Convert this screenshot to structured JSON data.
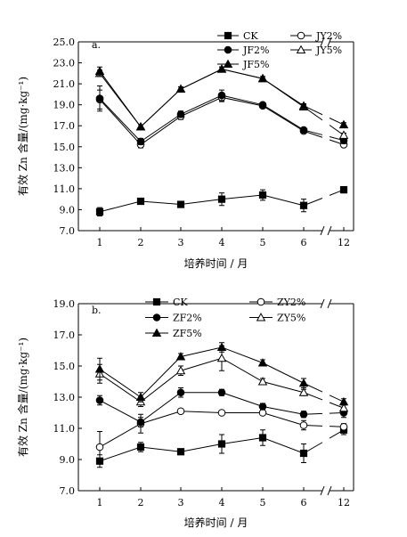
{
  "chart_data": [
    {
      "type": "line",
      "panel_label": "a.",
      "ylabel": "有效 Zn 含量/(mg·kg⁻¹)",
      "xlabel": "培养时间 / 月",
      "categories": [
        "1",
        "2",
        "3",
        "4",
        "5",
        "6",
        "12"
      ],
      "ylim": [
        7.0,
        25.0
      ],
      "yticks": [
        "7.0",
        "9.0",
        "11.0",
        "13.0",
        "15.0",
        "17.0",
        "19.0",
        "21.0",
        "23.0",
        "25.0"
      ],
      "axis_break": "between 6 and 12",
      "grid": false,
      "legend": "top-right",
      "series": [
        {
          "name": "CK",
          "marker": "filled-square",
          "values": [
            8.8,
            9.8,
            9.5,
            10.0,
            10.4,
            9.4,
            10.9
          ],
          "errors": [
            0.4,
            0.3,
            0.15,
            0.6,
            0.5,
            0.6,
            0.3
          ]
        },
        {
          "name": "JY2%",
          "marker": "open-circle",
          "values": [
            19.5,
            15.2,
            17.9,
            19.7,
            18.9,
            16.5,
            15.2
          ],
          "errors": [
            0.9,
            0.3,
            0.3,
            0.4,
            0.2,
            0.2,
            0.2
          ]
        },
        {
          "name": "JF2%",
          "marker": "filled-circle",
          "values": [
            19.6,
            15.5,
            18.1,
            19.9,
            19.0,
            16.6,
            15.6
          ],
          "errors": [
            1.2,
            0.3,
            0.3,
            0.5,
            0.2,
            0.2,
            0.3
          ]
        },
        {
          "name": "JY5%",
          "marker": "open-triangle",
          "values": [
            22.0,
            16.9,
            20.5,
            22.4,
            21.5,
            18.8,
            16.1
          ],
          "errors": [
            0.3,
            0.2,
            0.2,
            0.2,
            0.2,
            0.2,
            0.2
          ]
        },
        {
          "name": "JF5%",
          "marker": "filled-triangle",
          "values": [
            22.2,
            16.9,
            20.5,
            22.4,
            21.5,
            18.9,
            17.1
          ],
          "errors": [
            0.4,
            0.2,
            0.2,
            0.2,
            0.2,
            0.2,
            0.2
          ]
        }
      ]
    },
    {
      "type": "line",
      "panel_label": "b.",
      "ylabel": "有效 Zn 含量/(mg·kg⁻¹)",
      "xlabel": "培养时间 / 月",
      "categories": [
        "1",
        "2",
        "3",
        "4",
        "5",
        "6",
        "12"
      ],
      "ylim": [
        7.0,
        19.0
      ],
      "yticks": [
        "7.0",
        "9.0",
        "11.0",
        "13.0",
        "15.0",
        "17.0",
        "19.0"
      ],
      "axis_break": "between 6 and 12",
      "grid": false,
      "legend": "top",
      "series": [
        {
          "name": "CK",
          "marker": "filled-square",
          "values": [
            8.9,
            9.8,
            9.5,
            10.0,
            10.4,
            9.4,
            10.9
          ],
          "errors": [
            0.4,
            0.3,
            0.15,
            0.6,
            0.5,
            0.6,
            0.3
          ]
        },
        {
          "name": "ZY2%",
          "marker": "open-circle",
          "values": [
            9.8,
            11.3,
            12.1,
            12.0,
            12.0,
            11.2,
            11.1
          ],
          "errors": [
            1.0,
            0.6,
            0.15,
            0.1,
            0.1,
            0.3,
            0.2
          ]
        },
        {
          "name": "ZF2%",
          "marker": "filled-circle",
          "values": [
            12.8,
            11.4,
            13.3,
            13.3,
            12.4,
            11.9,
            12.0
          ],
          "errors": [
            0.3,
            0.3,
            0.3,
            0.2,
            0.2,
            0.2,
            0.3
          ]
        },
        {
          "name": "ZY5%",
          "marker": "open-triangle",
          "values": [
            14.5,
            12.7,
            14.7,
            15.5,
            14.0,
            13.3,
            12.3
          ],
          "errors": [
            0.6,
            0.3,
            0.3,
            0.8,
            0.2,
            0.2,
            0.2
          ]
        },
        {
          "name": "ZF5%",
          "marker": "filled-triangle",
          "values": [
            14.8,
            13.0,
            15.6,
            16.2,
            15.2,
            13.9,
            12.7
          ],
          "errors": [
            0.7,
            0.3,
            0.2,
            0.3,
            0.2,
            0.3,
            0.2
          ]
        }
      ]
    }
  ]
}
